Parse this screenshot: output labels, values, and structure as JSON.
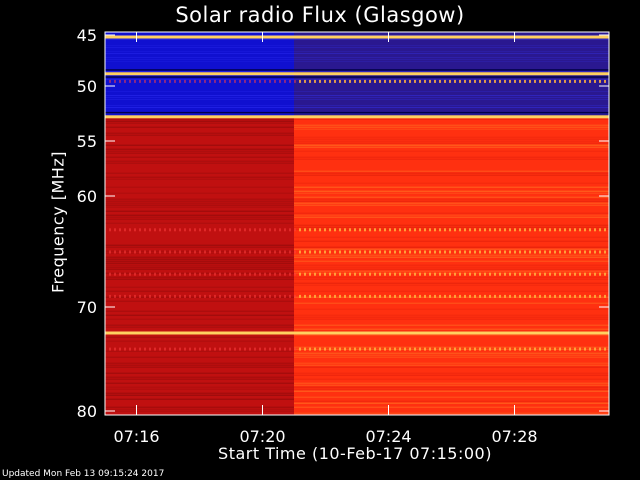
{
  "chart_data": {
    "type": "heatmap",
    "title": "Solar radio Flux (Glasgow)",
    "ylabel": "Frequency [MHz]",
    "xlabel": "Start Time (10-Feb-17 07:15:00)",
    "x_range": [
      "07:15",
      "07:31"
    ],
    "y_range": [
      45,
      81
    ],
    "y_ticks": [
      {
        "value": 45,
        "label": "45"
      },
      {
        "value": 50,
        "label": "50"
      },
      {
        "value": 55,
        "label": "55"
      },
      {
        "value": 60,
        "label": "60"
      },
      {
        "value": 70,
        "label": "70"
      },
      {
        "value": 80,
        "label": "80"
      }
    ],
    "x_ticks": [
      {
        "value": "07:16",
        "label": "07:16"
      },
      {
        "value": "07:20",
        "label": "07:20"
      },
      {
        "value": "07:24",
        "label": "07:24"
      },
      {
        "value": "07:28",
        "label": "07:28"
      }
    ],
    "step_time": "07:21",
    "colors": {
      "background": "#000000",
      "low_band_early": "#1010d0",
      "low_band_late": "#2a1890",
      "high_band_early": "#c01010",
      "high_band_late": "#ff3010",
      "bright_line": "#ffd060",
      "hot_line": "#ffb040"
    },
    "bright_lines_mhz": [
      45.2,
      48.8,
      52.8,
      72.5
    ],
    "rfi_lines_mhz": [
      49.5,
      63.0,
      65.0,
      67.0,
      69.0,
      74.0
    ]
  },
  "footer": {
    "updated": "Updated Mon Feb 13 09:15:24 2017"
  }
}
